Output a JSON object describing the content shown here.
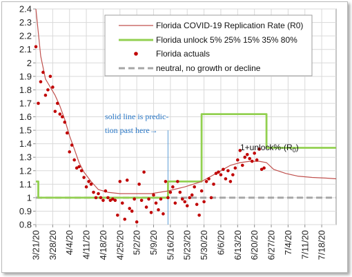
{
  "chart_data": {
    "type": "line",
    "y_ticks": [
      "0.8",
      "0.9",
      "1",
      "1.1",
      "1.2",
      "1.3",
      "1.4",
      "1.5",
      "1.6",
      "1.7",
      "1.8",
      "1.9",
      "2",
      "2.1",
      "2.2",
      "2.3",
      "2.4"
    ],
    "ylim": [
      0.8,
      2.4
    ],
    "x_ticks": [
      "3/21/20",
      "3/28/20",
      "4/4/20",
      "4/11/20",
      "4/18/20",
      "4/25/20",
      "5/2/20",
      "5/9/20",
      "5/16/20",
      "5/23/20",
      "5/30/20",
      "6/6/20",
      "6/13/20",
      "6/20/20",
      "6/27/20",
      "7/4/20",
      "7/11/20",
      "7/18/20"
    ],
    "x_start": "3/21/20",
    "x_end": "7/24/20",
    "grid": true,
    "legend_position": "top-right",
    "legend": {
      "items": [
        {
          "label": "Florida COVID-19 Replication Rate (R0)",
          "kind": "line",
          "color": "#c0504d"
        },
        {
          "label": "Florida unlock 5% 25% 15% 35% 80%",
          "kind": "thick-line",
          "color": "#92d050"
        },
        {
          "label": "Florida actuals",
          "kind": "dot",
          "color": "#c00000"
        },
        {
          "label": "neutral, no growth or decline",
          "kind": "dashed",
          "color": "#a6a6a6"
        }
      ]
    },
    "annotations": {
      "prediction_line1": "solid line is predic-",
      "prediction_line2": "tion past here→",
      "unlock_text": "1+unlock%·(R",
      "unlock_sub": "0",
      "unlock_close": ")",
      "prediction_date": "5/15/20"
    },
    "series": [
      {
        "name": "Florida COVID-19 Replication Rate (R0)",
        "color": "#c0504d",
        "x": [
          "3/21/20",
          "3/23/20",
          "3/25/20",
          "3/27/20",
          "3/29/20",
          "3/31/20",
          "4/2/20",
          "4/4/20",
          "4/6/20",
          "4/8/20",
          "4/10/20",
          "4/13/20",
          "4/16/20",
          "4/20/20",
          "4/25/20",
          "5/1/20",
          "5/8/20",
          "5/15/20",
          "5/22/20",
          "5/29/20",
          "6/2/20",
          "6/6/20",
          "6/10/20",
          "6/14/20",
          "6/18/20",
          "6/22/20",
          "6/25/20",
          "6/28/20",
          "7/3/20",
          "7/8/20",
          "7/14/20",
          "7/20/20",
          "7/24/20"
        ],
        "y": [
          2.4,
          2.05,
          1.88,
          1.82,
          1.76,
          1.68,
          1.58,
          1.46,
          1.36,
          1.26,
          1.19,
          1.12,
          1.06,
          1.04,
          1.03,
          1.03,
          1.03,
          1.05,
          1.08,
          1.12,
          1.16,
          1.2,
          1.24,
          1.26,
          1.27,
          1.27,
          1.26,
          1.21,
          1.18,
          1.16,
          1.15,
          1.145,
          1.14
        ]
      },
      {
        "name": "Florida unlock 5% 25% 15% 35% 80%",
        "color": "#92d050",
        "x": [
          "3/21/20",
          "3/22/20",
          "3/22/20",
          "5/15/20",
          "5/15/20",
          "5/29/20",
          "5/29/20",
          "6/25/20",
          "6/25/20",
          "7/24/20"
        ],
        "y": [
          1.12,
          1.12,
          1.0,
          1.0,
          1.12,
          1.12,
          1.62,
          1.62,
          1.37,
          1.37
        ]
      },
      {
        "name": "Florida actuals",
        "color": "#c00000",
        "x": [
          "3/21/20",
          "3/22/20",
          "3/23/20",
          "3/24/20",
          "3/25/20",
          "3/26/20",
          "3/27/20",
          "3/28/20",
          "3/29/20",
          "3/30/20",
          "3/31/20",
          "4/1/20",
          "4/2/20",
          "4/3/20",
          "4/4/20",
          "4/5/20",
          "4/6/20",
          "4/7/20",
          "4/8/20",
          "4/9/20",
          "4/10/20",
          "4/11/20",
          "4/12/20",
          "4/13/20",
          "4/14/20",
          "4/15/20",
          "4/16/20",
          "4/17/20",
          "4/18/20",
          "4/19/20",
          "4/20/20",
          "4/21/20",
          "4/22/20",
          "4/23/20",
          "4/24/20",
          "4/25/20",
          "4/26/20",
          "4/27/20",
          "4/28/20",
          "4/29/20",
          "4/30/20",
          "5/1/20",
          "5/2/20",
          "5/3/20",
          "5/4/20",
          "5/5/20",
          "5/6/20",
          "5/7/20",
          "5/8/20",
          "5/9/20",
          "5/10/20",
          "5/11/20",
          "5/12/20",
          "5/13/20",
          "5/14/20",
          "5/15/20",
          "5/16/20",
          "5/17/20",
          "5/18/20",
          "5/19/20",
          "5/20/20",
          "5/21/20",
          "5/22/20",
          "5/23/20",
          "5/24/20",
          "5/25/20",
          "5/26/20",
          "5/27/20",
          "5/28/20",
          "5/29/20",
          "5/30/20",
          "5/31/20",
          "6/1/20",
          "6/2/20",
          "6/3/20",
          "6/4/20",
          "6/5/20",
          "6/6/20",
          "6/7/20",
          "6/8/20",
          "6/9/20",
          "6/10/20",
          "6/11/20",
          "6/12/20",
          "6/13/20",
          "6/14/20",
          "6/15/20",
          "6/16/20",
          "6/17/20",
          "6/18/20",
          "6/19/20",
          "6/20/20",
          "6/21/20",
          "6/22/20",
          "6/23/20",
          "6/24/20"
        ],
        "y": [
          2.12,
          1.7,
          1.86,
          1.93,
          1.76,
          1.8,
          1.9,
          1.82,
          1.64,
          1.7,
          1.62,
          1.6,
          1.56,
          1.48,
          1.34,
          1.39,
          1.28,
          1.22,
          1.23,
          1.2,
          1.15,
          1.08,
          1.12,
          1.1,
          1.04,
          1.0,
          1.03,
          1.0,
          0.98,
          1.05,
          1.0,
          0.98,
          0.99,
          0.98,
          0.87,
          1.12,
          0.96,
          0.84,
          1.13,
          0.92,
          0.9,
          0.99,
          0.82,
          1.1,
          0.98,
          1.19,
          0.93,
          0.99,
          0.89,
          1.02,
          0.96,
          0.91,
          0.99,
          0.88,
          1.12,
          1.0,
          1.04,
          1.08,
          0.96,
          1.12,
          1.04,
          0.99,
          0.97,
          0.94,
          1.0,
          1.02,
          1.08,
          0.95,
          0.87,
          1.05,
          0.97,
          1.12,
          1.14,
          1.0,
          1.1,
          1.18,
          1.19,
          1.17,
          1.21,
          1.14,
          1.2,
          1.12,
          1.17,
          1.22,
          1.28,
          1.35,
          1.24,
          1.3,
          1.32,
          1.29,
          1.27,
          1.33,
          1.28,
          1.36,
          1.21,
          1.22
        ]
      },
      {
        "name": "neutral, no growth or decline",
        "color": "#a6a6a6",
        "x": [
          "3/21/20",
          "7/24/20"
        ],
        "y": [
          1.0,
          1.0
        ]
      }
    ]
  }
}
